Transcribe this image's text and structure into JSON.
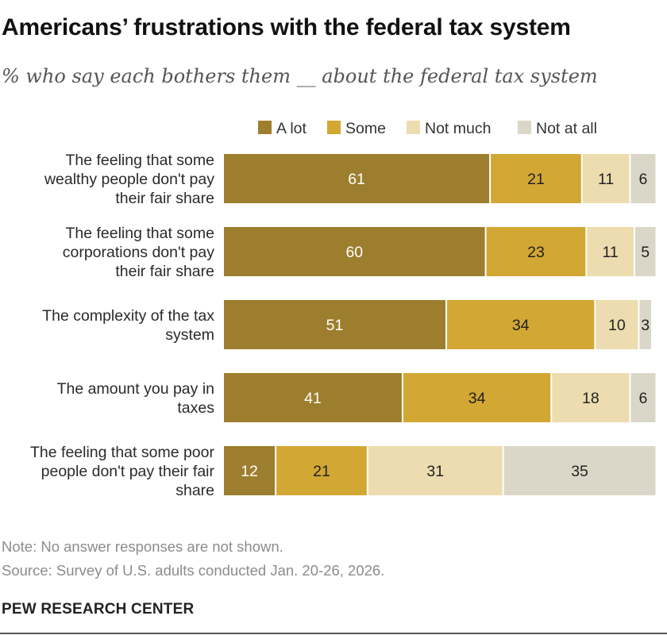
{
  "title": "Americans’ frustrations with the federal tax system",
  "subtitle": "% who say each bothers them __ about the federal tax system",
  "note": "Note: No answer responses are not shown.",
  "source": "Source: Survey of U.S. adults conducted Jan. 20-26, 2026.",
  "brand": "PEW RESEARCH CENTER",
  "chart_data": {
    "type": "bar",
    "orientation": "horizontal",
    "stacked": true,
    "xlim": [
      0,
      100
    ],
    "legend_position": "top",
    "categories": [
      [
        "The feeling that some",
        "wealthy people don't pay",
        "their fair share"
      ],
      [
        "The feeling that some",
        "corporations don't pay",
        "their fair share"
      ],
      [
        "The complexity of the tax",
        "system"
      ],
      [
        "The amount you pay in",
        "taxes"
      ],
      [
        "The feeling that some poor",
        "people don't pay their fair",
        "share"
      ]
    ],
    "series": [
      {
        "name": "A lot",
        "color": "#9c7e2e",
        "label_color": "#ffffff",
        "values": [
          61,
          60,
          51,
          41,
          12
        ]
      },
      {
        "name": "Some",
        "color": "#d2a733",
        "label_color": "#222222",
        "values": [
          21,
          23,
          34,
          34,
          21
        ]
      },
      {
        "name": "Not much",
        "color": "#ecdcaf",
        "label_color": "#222222",
        "values": [
          11,
          11,
          10,
          18,
          31
        ]
      },
      {
        "name": "Not at all",
        "color": "#dbd7c8",
        "label_color": "#222222",
        "values": [
          6,
          5,
          3,
          6,
          35
        ]
      }
    ]
  }
}
